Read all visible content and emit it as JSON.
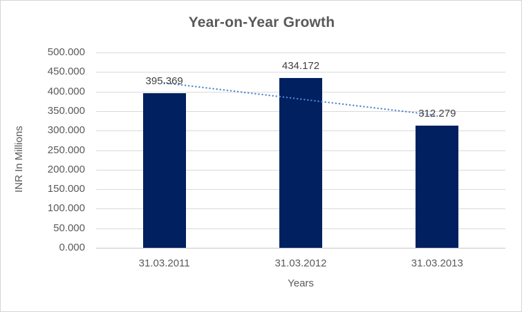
{
  "chart_data": {
    "type": "bar",
    "title": "Year-on-Year Growth",
    "xlabel": "Years",
    "ylabel": "INR In Millions",
    "categories": [
      "31.03.2011",
      "31.03.2012",
      "31.03.2013"
    ],
    "values": [
      395.369,
      434.172,
      312.279
    ],
    "data_labels": [
      "395.369",
      "434.172",
      "312.279"
    ],
    "ylim": [
      0,
      500
    ],
    "ytick_step": 50,
    "ytick_labels": [
      "0.000",
      "50.000",
      "100.000",
      "150.000",
      "200.000",
      "250.000",
      "300.000",
      "350.000",
      "400.000",
      "450.000",
      "500.000"
    ],
    "grid": true,
    "legend": "none",
    "trendline": {
      "type": "linear",
      "style": "dotted",
      "endpoint_values": [
        422.152,
        339.062
      ]
    },
    "colors": {
      "bar": "#002060",
      "trendline": "#4e87d1",
      "text": "#595959",
      "data_label_text": "#404040",
      "gridline": "#d9d9d9",
      "axis_line": "#c6c6c6",
      "border": "#d5d5d5",
      "background": "#ffffff"
    }
  }
}
